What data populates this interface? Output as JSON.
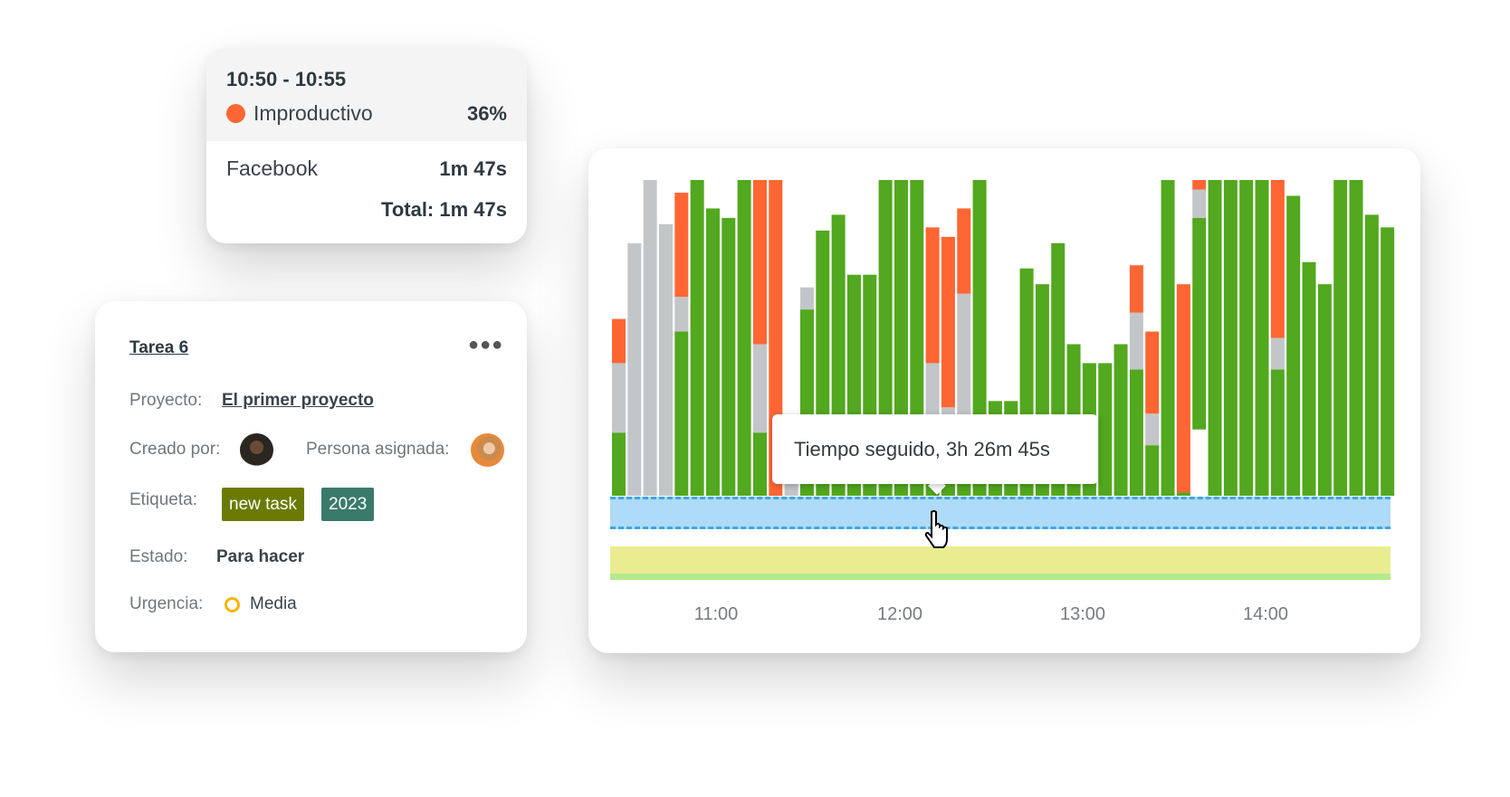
{
  "summary": {
    "range": "10:50 - 10:55",
    "category": "Improductivo",
    "category_color": "#ff6633",
    "percent": "36%",
    "app": "Facebook",
    "app_time": "1m 47s",
    "total": "Total: 1m 47s"
  },
  "task": {
    "title": "Tarea 6",
    "more_icon": "more-horizontal-icon",
    "project_label": "Proyecto:",
    "project": "El primer proyecto",
    "created_label": "Creado por:",
    "assignee_label": "Persona asignada:",
    "tag_label": "Etiqueta:",
    "tags": [
      {
        "text": "new task",
        "color": "#6b7a00"
      },
      {
        "text": "2023",
        "color": "#3a7a6a"
      }
    ],
    "status_label": "Estado:",
    "status": "Para hacer",
    "urgency_label": "Urgencia:",
    "urgency": "Media",
    "urgency_color": "#f5b400"
  },
  "chart_data": {
    "type": "bar",
    "stacked": true,
    "interval_minutes": 5,
    "ylim": [
      0,
      100
    ],
    "colors": {
      "productive": "#52a81e",
      "neutral": "#c3c6c9",
      "unproductive": "#ff6633"
    },
    "x_ticks": [
      "11:00",
      "12:00",
      "13:00",
      "14:00"
    ],
    "bars": [
      {
        "productive": 20,
        "neutral": 22,
        "unproductive": 14
      },
      {
        "productive": 0,
        "neutral": 80,
        "unproductive": 0
      },
      {
        "productive": 0,
        "neutral": 100,
        "unproductive": 0
      },
      {
        "productive": 0,
        "neutral": 86,
        "unproductive": 0
      },
      {
        "productive": 52,
        "neutral": 11,
        "unproductive": 33
      },
      {
        "productive": 100,
        "neutral": 0,
        "unproductive": 0
      },
      {
        "productive": 91,
        "neutral": 0,
        "unproductive": 0
      },
      {
        "productive": 88,
        "neutral": 0,
        "unproductive": 0
      },
      {
        "productive": 100,
        "neutral": 0,
        "unproductive": 0
      },
      {
        "productive": 20,
        "neutral": 28,
        "unproductive": 52
      },
      {
        "productive": 0,
        "neutral": 0,
        "unproductive": 100
      },
      {
        "productive": 0,
        "neutral": 20,
        "unproductive": 0
      },
      {
        "productive": 59,
        "neutral": 7,
        "unproductive": 0
      },
      {
        "productive": 84,
        "neutral": 0,
        "unproductive": 0
      },
      {
        "productive": 89,
        "neutral": 0,
        "unproductive": 0
      },
      {
        "productive": 70,
        "neutral": 0,
        "unproductive": 0
      },
      {
        "productive": 70,
        "neutral": 0,
        "unproductive": 0
      },
      {
        "productive": 100,
        "neutral": 0,
        "unproductive": 0
      },
      {
        "productive": 100,
        "neutral": 0,
        "unproductive": 0
      },
      {
        "productive": 100,
        "neutral": 0,
        "unproductive": 0
      },
      {
        "productive": 25,
        "neutral": 17,
        "unproductive": 43
      },
      {
        "productive": 20,
        "neutral": 8,
        "unproductive": 54
      },
      {
        "productive": 4,
        "neutral": 60,
        "unproductive": 27
      },
      {
        "productive": 100,
        "neutral": 0,
        "unproductive": 0
      },
      {
        "productive": 30,
        "neutral": 0,
        "unproductive": 0
      },
      {
        "productive": 30,
        "neutral": 0,
        "unproductive": 0
      },
      {
        "productive": 72,
        "neutral": 0,
        "unproductive": 0
      },
      {
        "productive": 67,
        "neutral": 0,
        "unproductive": 0
      },
      {
        "productive": 80,
        "neutral": 0,
        "unproductive": 0
      },
      {
        "productive": 48,
        "neutral": 0,
        "unproductive": 0
      },
      {
        "productive": 42,
        "neutral": 0,
        "unproductive": 0
      },
      {
        "productive": 42,
        "neutral": 0,
        "unproductive": 0
      },
      {
        "productive": 48,
        "neutral": 0,
        "unproductive": 0
      },
      {
        "productive": 40,
        "neutral": 18,
        "unproductive": 15
      },
      {
        "productive": 16,
        "neutral": 10,
        "unproductive": 26
      },
      {
        "productive": 100,
        "neutral": 0,
        "unproductive": 0
      },
      {
        "productive": 1,
        "neutral": 0,
        "unproductive": 66
      },
      {
        "gap": 21,
        "productive": 67,
        "neutral": 9,
        "unproductive": 3
      },
      {
        "productive": 100,
        "neutral": 0,
        "unproductive": 0
      },
      {
        "productive": 100,
        "neutral": 0,
        "unproductive": 0
      },
      {
        "productive": 100,
        "neutral": 0,
        "unproductive": 0
      },
      {
        "productive": 100,
        "neutral": 0,
        "unproductive": 0
      },
      {
        "productive": 40,
        "neutral": 10,
        "unproductive": 50
      },
      {
        "productive": 95,
        "neutral": 0,
        "unproductive": 0
      },
      {
        "productive": 74,
        "neutral": 0,
        "unproductive": 0
      },
      {
        "productive": 67,
        "neutral": 0,
        "unproductive": 0
      },
      {
        "productive": 100,
        "neutral": 0,
        "unproductive": 0
      },
      {
        "productive": 100,
        "neutral": 0,
        "unproductive": 0
      },
      {
        "productive": 89,
        "neutral": 0,
        "unproductive": 0
      },
      {
        "productive": 85,
        "neutral": 0,
        "unproductive": 0
      }
    ],
    "timeline_colors": {
      "selection": "#aedbf7",
      "selection_border": "#3ea6e4",
      "track": "#eaec90",
      "track_base": "#b3ea8e"
    },
    "tooltip": "Tiempo seguido, 3h 26m 45s"
  }
}
